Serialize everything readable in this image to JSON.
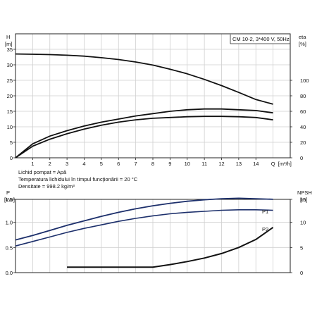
{
  "chart_data": [
    {
      "type": "line",
      "title": "CM 10-2, 3*400 V, 50Hz",
      "xlabel": "Q",
      "xunit": "[m³/h]",
      "ylabel": "H",
      "yunit": "[m]",
      "y2label": "eta",
      "y2unit": "[%]",
      "xlim": [
        0,
        16
      ],
      "ylim": [
        0,
        40
      ],
      "y2lim": [
        0,
        160
      ],
      "grid": true,
      "x_ticks": [
        "1",
        "2",
        "3",
        "4",
        "5",
        "6",
        "7",
        "8",
        "9",
        "10",
        "11",
        "12",
        "13",
        "14"
      ],
      "x_tick_values": [
        1,
        2,
        3,
        4,
        5,
        6,
        7,
        8,
        9,
        10,
        11,
        12,
        13,
        14
      ],
      "y_ticks": [
        "0",
        "5",
        "10",
        "15",
        "20",
        "25",
        "30",
        "35"
      ],
      "y_tick_values": [
        0,
        5,
        10,
        15,
        20,
        25,
        30,
        35
      ],
      "y2_ticks": [
        "0",
        "20",
        "40",
        "60",
        "80",
        "100"
      ],
      "y2_tick_values": [
        0,
        20,
        40,
        60,
        80,
        100
      ],
      "series": [
        {
          "axis": "H",
          "x": [
            0,
            1,
            2,
            3,
            4,
            5,
            6,
            7,
            8,
            9,
            10,
            11,
            12,
            13,
            14,
            15
          ],
          "values": [
            33.5,
            33.4,
            33.3,
            33.1,
            32.8,
            32.3,
            31.7,
            30.9,
            29.9,
            28.6,
            27.1,
            25.3,
            23.3,
            21.1,
            18.8,
            17.3
          ]
        },
        {
          "axis": "eta",
          "x": [
            0,
            1,
            2,
            3,
            4,
            5,
            6,
            7,
            8,
            9,
            10,
            11,
            12,
            13,
            14,
            15
          ],
          "values": [
            0,
            18,
            28,
            35,
            41,
            46,
            50,
            54,
            57,
            60,
            62,
            63,
            63,
            62,
            61,
            58
          ]
        },
        {
          "axis": "eta",
          "x": [
            0,
            1,
            2,
            3,
            4,
            5,
            6,
            7,
            8,
            9,
            10,
            11,
            12,
            13,
            14,
            15
          ],
          "values": [
            0,
            15,
            24,
            31,
            37,
            42,
            46,
            49,
            51,
            52,
            53,
            53.5,
            53.5,
            53,
            52,
            49
          ]
        }
      ],
      "notes": [
        "Lichid pompat = Apă",
        "Temperatura lichidului în timpul funcţionării = 20 °C",
        "Densitate = 998.2 kg/m³"
      ]
    },
    {
      "type": "line",
      "xlim": [
        0,
        16
      ],
      "ylim": [
        0,
        1.5
      ],
      "y2lim": [
        0,
        15
      ],
      "grid": true,
      "ylabel": "P",
      "yunit": "[kW]",
      "y2label": "NPSH",
      "y2unit": "[m]",
      "y_ticks": [
        "0.0",
        "0.5",
        "1.0",
        "1.5"
      ],
      "y_tick_values": [
        0,
        0.5,
        1.0,
        1.5
      ],
      "y2_ticks": [
        "0",
        "5",
        "10",
        "15"
      ],
      "y2_tick_values": [
        0,
        5,
        10,
        15
      ],
      "series": [
        {
          "name": "P1",
          "axis": "P",
          "x": [
            0,
            1,
            2,
            3,
            4,
            5,
            6,
            7,
            8,
            9,
            10,
            11,
            12,
            13,
            14,
            15
          ],
          "values": [
            0.65,
            0.74,
            0.84,
            0.94,
            1.03,
            1.12,
            1.2,
            1.27,
            1.33,
            1.38,
            1.42,
            1.45,
            1.47,
            1.48,
            1.47,
            1.46
          ]
        },
        {
          "name": "P2",
          "axis": "P",
          "x": [
            0,
            1,
            2,
            3,
            4,
            5,
            6,
            7,
            8,
            9,
            10,
            11,
            12,
            13,
            14,
            15
          ],
          "values": [
            0.53,
            0.62,
            0.71,
            0.8,
            0.88,
            0.95,
            1.02,
            1.08,
            1.13,
            1.17,
            1.2,
            1.22,
            1.24,
            1.25,
            1.25,
            1.24
          ]
        },
        {
          "axis": "NPSH",
          "x": [
            3,
            4,
            5,
            6,
            7,
            8,
            9,
            10,
            11,
            12,
            13,
            14,
            15
          ],
          "values": [
            1.1,
            1.1,
            1.1,
            1.1,
            1.1,
            1.1,
            1.6,
            2.2,
            2.9,
            3.8,
            5.0,
            6.6,
            9.0
          ]
        }
      ]
    }
  ]
}
